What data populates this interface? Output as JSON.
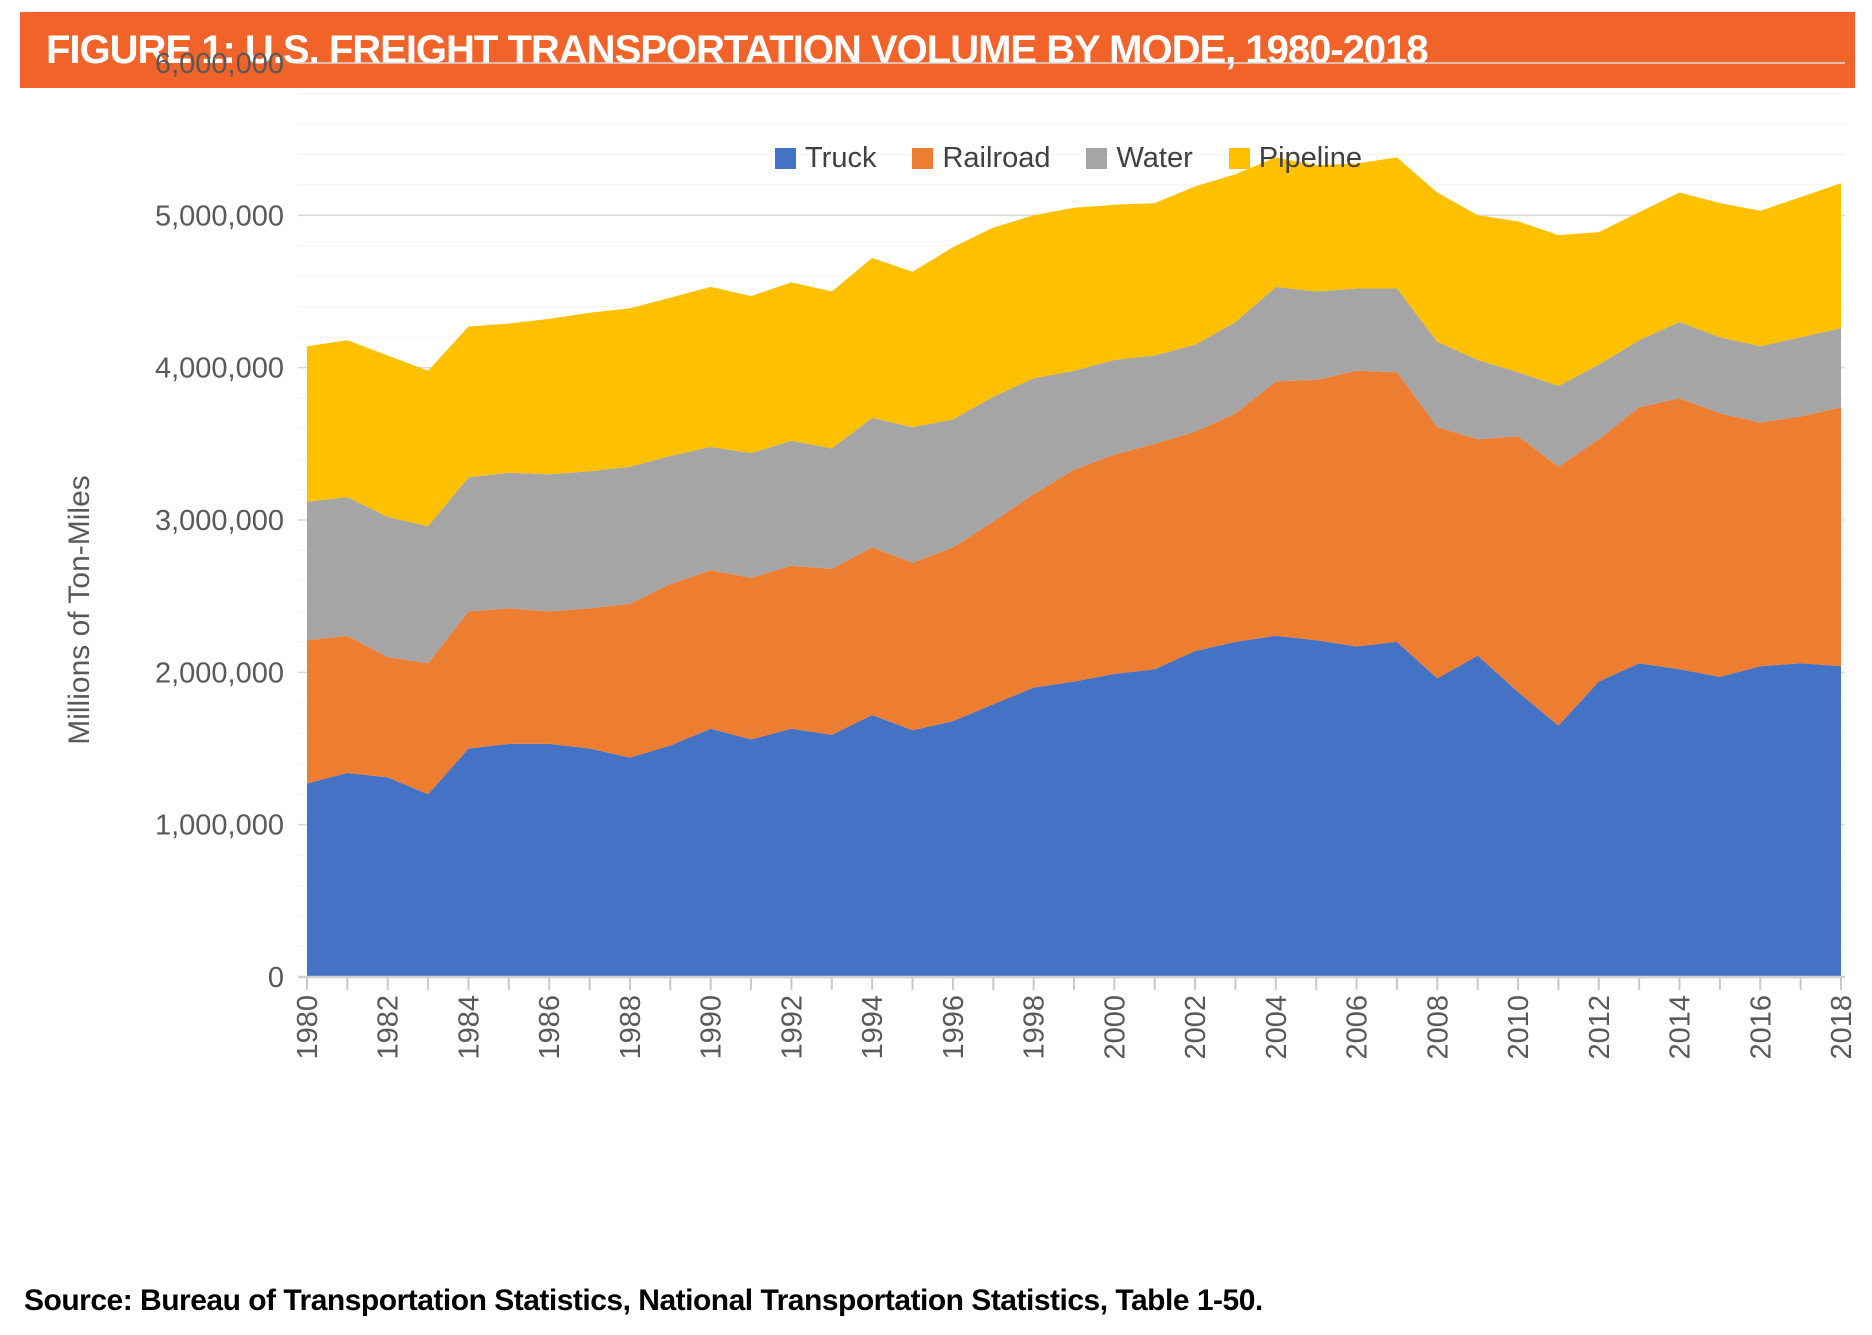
{
  "header": {
    "title": "FIGURE 1: U.S. FREIGHT TRANSPORTATION VOLUME BY MODE, 1980-2018",
    "banner_color": "#F2632A",
    "title_color": "#FFFFFF"
  },
  "source_note": "Source: Bureau of Transportation Statistics, National Transportation Statistics, Table 1-50.",
  "chart_data": {
    "type": "area",
    "stacked": true,
    "ylabel": "Millions of Ton-Miles",
    "ylim": [
      0,
      6000000
    ],
    "ytick_interval": 1000000,
    "minor_gridline_interval": 200000,
    "grid": true,
    "legend_position": "top-center",
    "ytick_labels": [
      "0",
      "1,000,000",
      "2,000,000",
      "3,000,000",
      "4,000,000",
      "5,000,000",
      "6,000,000"
    ],
    "x": [
      1980,
      1981,
      1982,
      1983,
      1984,
      1985,
      1986,
      1987,
      1988,
      1989,
      1990,
      1991,
      1992,
      1993,
      1994,
      1995,
      1996,
      1997,
      1998,
      1999,
      2000,
      2001,
      2002,
      2003,
      2004,
      2005,
      2006,
      2007,
      2008,
      2009,
      2010,
      2011,
      2012,
      2013,
      2014,
      2015,
      2016,
      2017,
      2018
    ],
    "xtick_label_step": 2,
    "series": [
      {
        "name": "Truck",
        "color": "#4472C4",
        "values": [
          1270000,
          1340000,
          1310000,
          1200000,
          1500000,
          1530000,
          1530000,
          1500000,
          1440000,
          1520000,
          1630000,
          1560000,
          1630000,
          1590000,
          1720000,
          1620000,
          1680000,
          1790000,
          1900000,
          1940000,
          1990000,
          2020000,
          2140000,
          2200000,
          2240000,
          2210000,
          2170000,
          2200000,
          1960000,
          2110000,
          1870000,
          1650000,
          1940000,
          2060000,
          2020000,
          1970000,
          2040000,
          2060000,
          2040000
        ]
      },
      {
        "name": "Railroad",
        "color": "#ED7D31",
        "values": [
          940000,
          900000,
          790000,
          860000,
          900000,
          890000,
          870000,
          920000,
          1010000,
          1060000,
          1040000,
          1060000,
          1070000,
          1090000,
          1100000,
          1100000,
          1140000,
          1200000,
          1270000,
          1390000,
          1440000,
          1480000,
          1440000,
          1500000,
          1670000,
          1710000,
          1810000,
          1770000,
          1650000,
          1420000,
          1680000,
          1700000,
          1590000,
          1680000,
          1780000,
          1730000,
          1600000,
          1620000,
          1700000
        ]
      },
      {
        "name": "Water",
        "color": "#A5A5A5",
        "values": [
          910000,
          910000,
          920000,
          900000,
          880000,
          890000,
          900000,
          900000,
          900000,
          840000,
          810000,
          820000,
          820000,
          790000,
          850000,
          890000,
          840000,
          820000,
          760000,
          650000,
          620000,
          580000,
          570000,
          600000,
          620000,
          580000,
          540000,
          550000,
          560000,
          520000,
          420000,
          530000,
          490000,
          440000,
          500000,
          500000,
          500000,
          520000,
          520000
        ]
      },
      {
        "name": "Pipeline",
        "color": "#FFC000",
        "values": [
          1020000,
          1030000,
          1060000,
          1020000,
          990000,
          980000,
          1020000,
          1040000,
          1040000,
          1040000,
          1050000,
          1030000,
          1040000,
          1030000,
          1050000,
          1020000,
          1130000,
          1110000,
          1070000,
          1070000,
          1020000,
          1000000,
          1040000,
          970000,
          850000,
          830000,
          820000,
          860000,
          980000,
          950000,
          990000,
          990000,
          870000,
          840000,
          850000,
          880000,
          890000,
          920000,
          950000
        ]
      }
    ]
  },
  "style_colors": {
    "gridline_major": "#D9D9D9",
    "gridline_minor": "#F2F2F2",
    "axis_line": "#D0D0D0",
    "tick_mark": "#C9C9C9",
    "axis_text": "#595959",
    "legend_text": "#404040"
  }
}
